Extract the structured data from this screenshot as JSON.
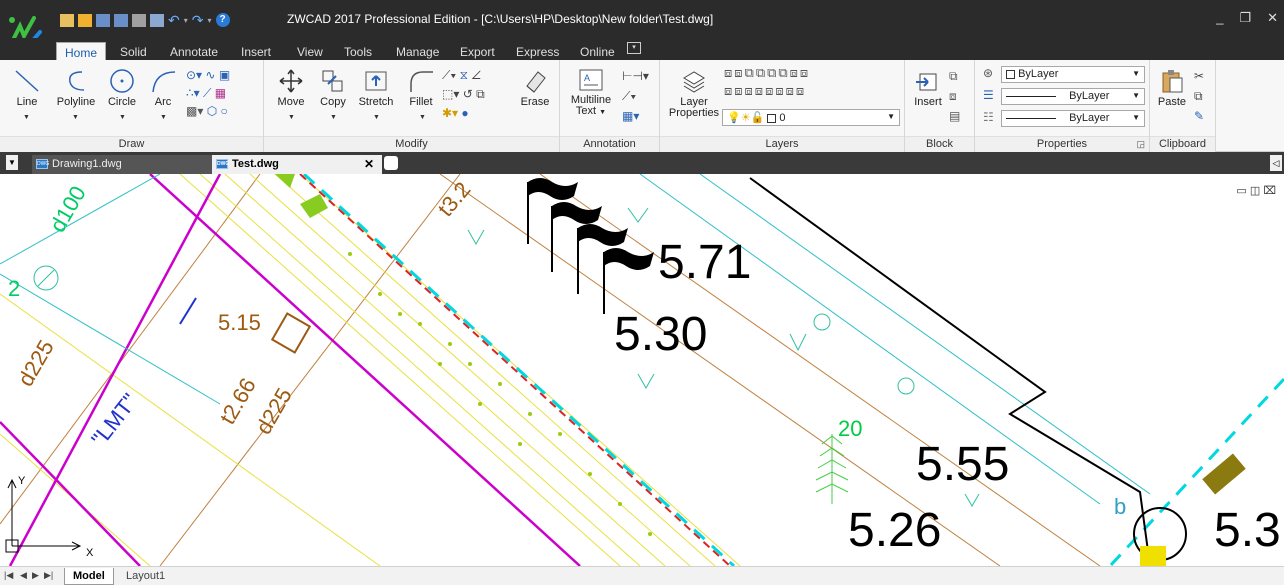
{
  "window": {
    "title": "ZWCAD 2017 Professional Edition - [C:\\Users\\HP\\Desktop\\New folder\\Test.dwg]",
    "controls": [
      "_",
      "❐",
      "✕"
    ]
  },
  "menu_tabs": [
    "Home",
    "Solid",
    "Annotate",
    "Insert",
    "View",
    "Tools",
    "Manage",
    "Export",
    "Express",
    "Online"
  ],
  "active_menu_tab": "Home",
  "ribbon": {
    "draw": {
      "title": "Draw",
      "buttons": [
        "Line",
        "Polyline",
        "Circle",
        "Arc"
      ]
    },
    "modify": {
      "title": "Modify",
      "buttons": [
        "Move",
        "Copy",
        "Stretch",
        "Fillet",
        "Erase"
      ]
    },
    "annotation": {
      "title": "Annotation",
      "buttons": [
        "Multiline\nText",
        "Multiline",
        "Text"
      ]
    },
    "layers": {
      "title": "Layers",
      "properties_label": "Layer",
      "properties_label2": "Properties",
      "current_layer": "0"
    },
    "block": {
      "title": "Block",
      "insert_label": "Insert"
    },
    "properties": {
      "title": "Properties",
      "color": "ByLayer",
      "linetype": "ByLayer",
      "lineweight": "ByLayer"
    },
    "clipboard": {
      "title": "Clipboard",
      "paste_label": "Paste"
    }
  },
  "doc_tabs": [
    {
      "label": "Drawing1.dwg",
      "active": false
    },
    {
      "label": "Test.dwg",
      "active": true
    }
  ],
  "drawing_texts": {
    "flag_value_top": "5.71",
    "flag_value_bottom": "5.30",
    "level_a": "5.15",
    "level_b": "5.55",
    "level_c": "5.26",
    "level_right": "5.3",
    "t_label_top": "t3.2",
    "t_label": "t2.66",
    "d_label_1": "d225",
    "d_label_2": "d225",
    "d_label_top": "d100",
    "lmt_label": "\"LMT\"",
    "number_2": "2",
    "number_20": "20",
    "b_label": "b",
    "axis_x": "X",
    "axis_y": "Y"
  },
  "layout_tabs": [
    {
      "label": "Model",
      "active": true
    },
    {
      "label": "Layout1",
      "active": false
    }
  ],
  "colors": {
    "titlebar": "#2b2b2b",
    "ribbon": "#f7f7f7",
    "magenta": "#cc00cc",
    "brown": "#9c5a12",
    "cyan": "#00c8d0",
    "green": "#00cc44",
    "red_dash": "#dd2222"
  }
}
